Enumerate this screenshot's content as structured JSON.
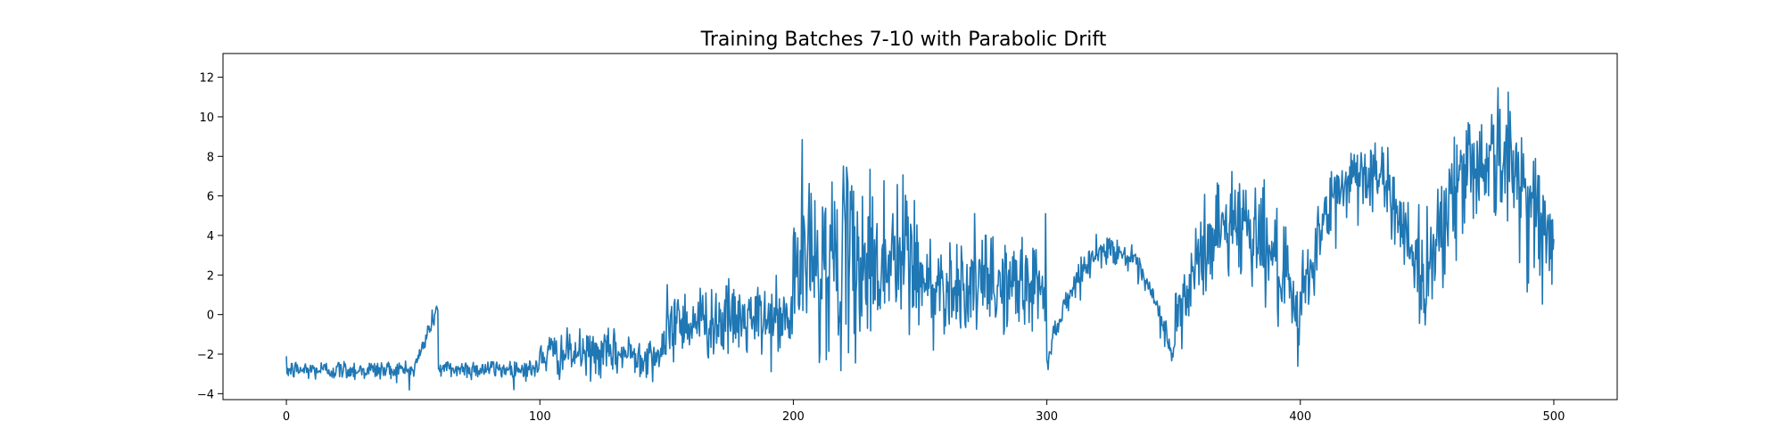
{
  "chart_data": {
    "type": "line",
    "title": "Training Batches 7-10 with Parabolic Drift",
    "xlabel": "",
    "ylabel": "",
    "xlim": [
      -25,
      525
    ],
    "ylim": [
      -4.3,
      13.2
    ],
    "grid": false,
    "x_ticks": [
      0,
      100,
      200,
      300,
      400,
      500
    ],
    "y_ticks": [
      -4,
      -2,
      0,
      2,
      4,
      6,
      8,
      10,
      12
    ],
    "x_tick_labels": [
      "0",
      "100",
      "200",
      "300",
      "400",
      "500"
    ],
    "y_tick_labels": [
      "−4",
      "−2",
      "0",
      "2",
      "4",
      "6",
      "8",
      "10",
      "12"
    ],
    "series": [
      {
        "color": "#1f77b4",
        "x_start": 0,
        "x_end": 500,
        "x_step": 0.25,
        "segments": [
          {
            "x_range": [
              0,
              50
            ],
            "shape": "flat",
            "level": -2.8,
            "noise": 0.25
          },
          {
            "x_range": [
              50,
              60
            ],
            "shape": "ramp",
            "from": -2.9,
            "to": 0.5,
            "noise": 0.25
          },
          {
            "x_range": [
              60,
              100
            ],
            "shape": "flat",
            "level": -2.75,
            "noise": 0.25
          },
          {
            "x_range": [
              100,
              150
            ],
            "shape": "flat",
            "level": -2.0,
            "noise": 0.55
          },
          {
            "x_range": [
              150,
              200
            ],
            "shape": "flat",
            "level": -0.3,
            "noise": 0.9
          },
          {
            "x_range": [
              200,
              250
            ],
            "shape": "flat",
            "level": 2.7,
            "noise": 2.2
          },
          {
            "x_range": [
              250,
              300
            ],
            "shape": "flat",
            "level": 1.5,
            "noise": 1.2
          },
          {
            "x_range": [
              300,
              350
            ],
            "shape": "parabola",
            "edge": -2.2,
            "peak": 3.3,
            "noise": 0.35
          },
          {
            "x_range": [
              350,
              400
            ],
            "shape": "parabola",
            "edge": -1.2,
            "peak": 4.8,
            "noise": 1.3
          },
          {
            "x_range": [
              400,
              450
            ],
            "shape": "parabola",
            "edge": 0.5,
            "peak": 7.2,
            "noise": 1.0
          },
          {
            "x_range": [
              450,
              500
            ],
            "shape": "parabola",
            "edge": 2.5,
            "peak": 8.0,
            "noise": 1.6
          }
        ]
      }
    ]
  }
}
